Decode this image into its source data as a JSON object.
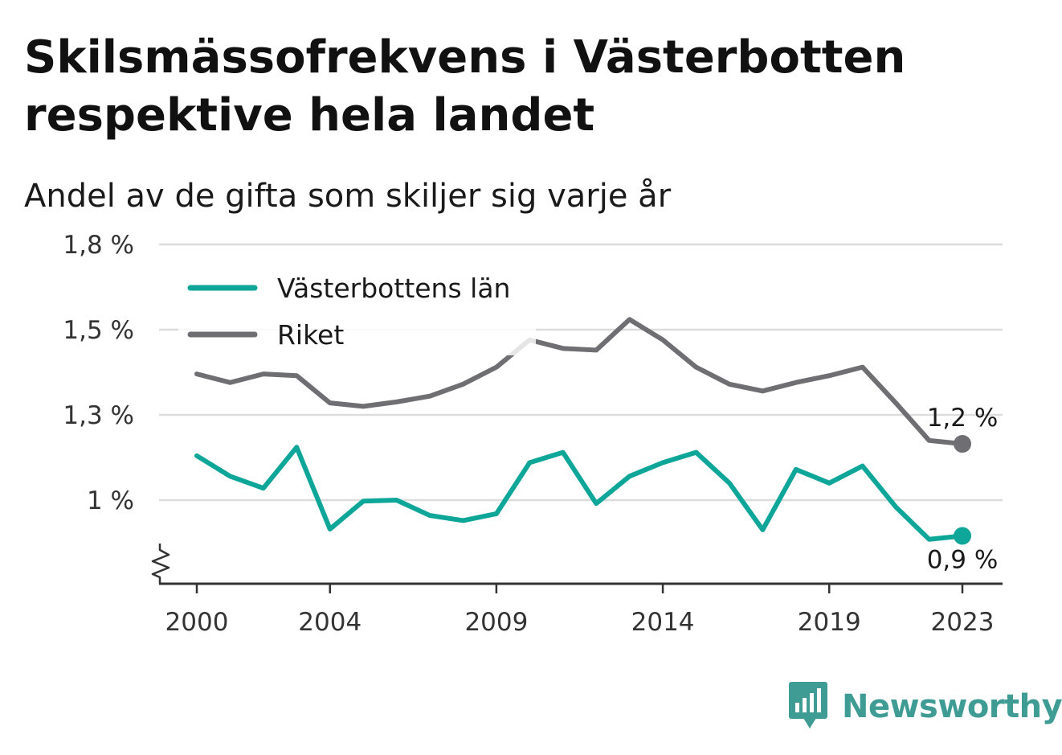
{
  "title": "Skilsmässofrekvens i Västerbotten respektive hela landet",
  "subtitle": "Andel av de gifta som skiljer sig varje år",
  "brand": {
    "name": "Newsworthy",
    "icon": "bar-chart-speech-bubble-icon",
    "color": "#3f9c94"
  },
  "colors": {
    "vasterbotten": "#0fa69a",
    "riket": "#6e6e73",
    "grid": "#dcdcdc",
    "axis": "#333333"
  },
  "chart_data": {
    "type": "line",
    "title": "Skilsmässofrekvens i Västerbotten respektive hela landet",
    "subtitle": "Andel av de gifta som skiljer sig varje år",
    "x": [
      2000,
      2001,
      2002,
      2003,
      2004,
      2005,
      2006,
      2007,
      2008,
      2009,
      2010,
      2011,
      2012,
      2013,
      2014,
      2015,
      2016,
      2017,
      2018,
      2019,
      2020,
      2021,
      2022,
      2023
    ],
    "x_ticks": [
      2000,
      2004,
      2009,
      2014,
      2019,
      2023
    ],
    "x_tick_labels": [
      "2000",
      "2004",
      "2009",
      "2014",
      "2019",
      "2023"
    ],
    "y_ticks": [
      1.0,
      1.25,
      1.5,
      1.75
    ],
    "y_tick_labels": [
      "1 %",
      "1,3 %",
      "1,5 %",
      "1,8 %"
    ],
    "ylim": [
      0.75,
      1.75
    ],
    "y_axis_break": true,
    "grid": true,
    "legend": "top-left",
    "series": [
      {
        "name": "Västerbottens län",
        "color": "#0fa69a",
        "values": [
          1.13,
          1.07,
          1.035,
          1.155,
          0.915,
          0.997,
          1.0,
          0.955,
          0.94,
          0.96,
          1.11,
          1.14,
          0.99,
          1.07,
          1.11,
          1.14,
          1.05,
          0.913,
          1.09,
          1.05,
          1.1,
          0.98,
          0.885,
          0.895
        ],
        "end_label": "0,9 %"
      },
      {
        "name": "Riket",
        "color": "#6e6e73",
        "values": [
          1.37,
          1.345,
          1.37,
          1.365,
          1.285,
          1.275,
          1.288,
          1.305,
          1.34,
          1.39,
          1.47,
          1.445,
          1.44,
          1.53,
          1.47,
          1.39,
          1.34,
          1.32,
          1.345,
          1.365,
          1.39,
          1.285,
          1.175,
          1.165
        ],
        "end_label": "1,2 %"
      }
    ]
  }
}
